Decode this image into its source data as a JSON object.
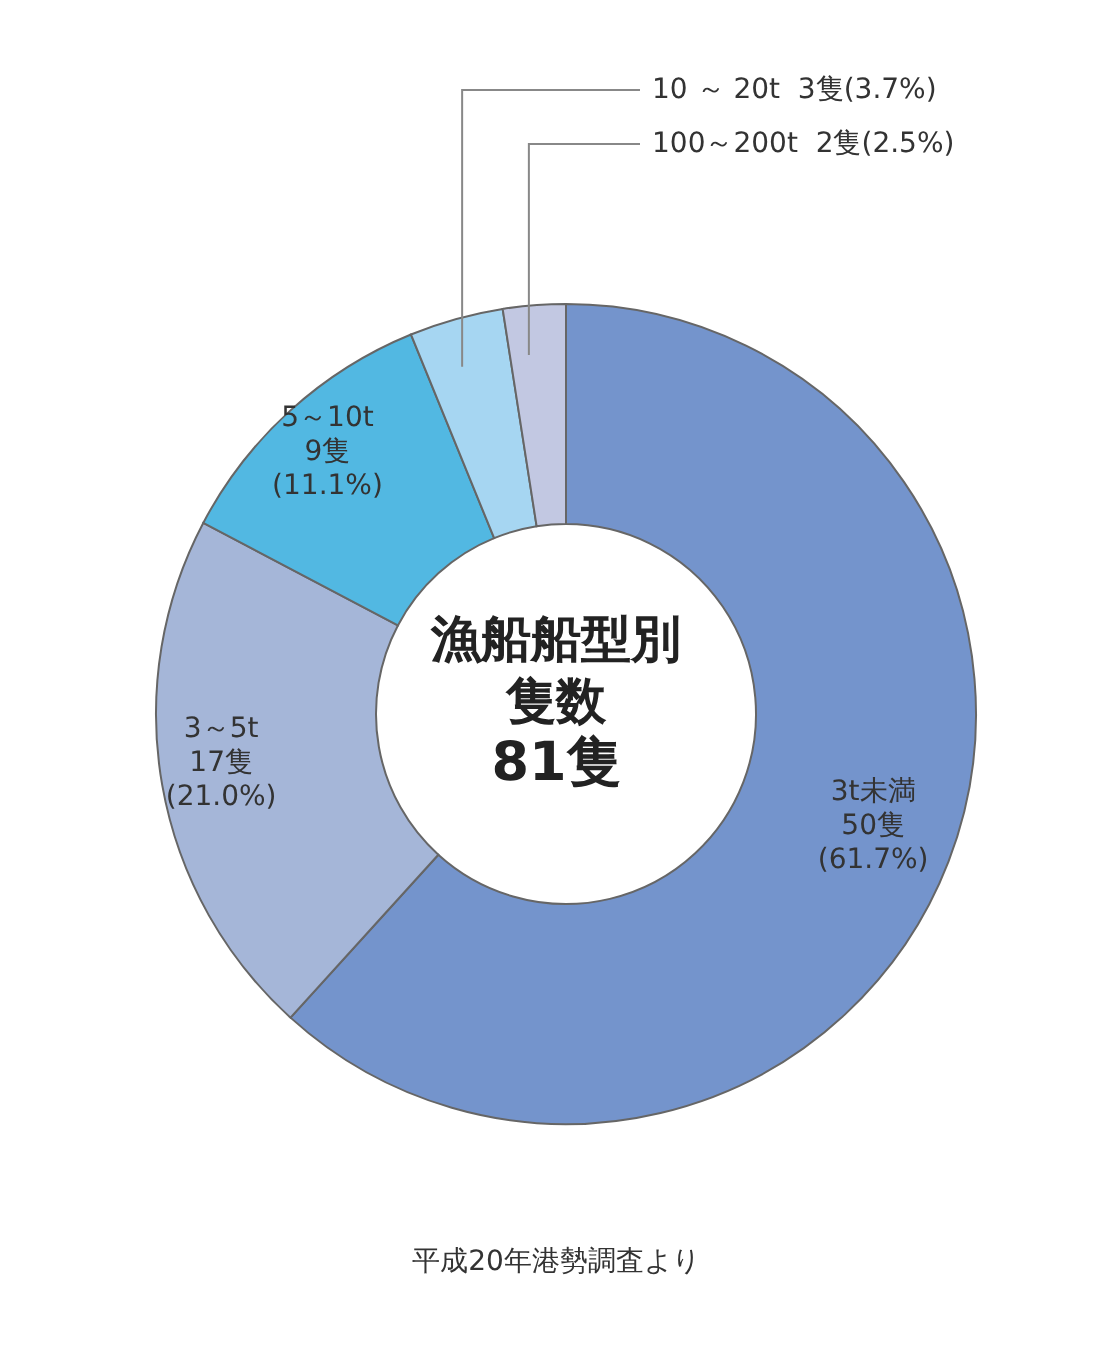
{
  "chart_data": {
    "type": "donut",
    "title": "漁船船型別隻数",
    "subtitle": "81隻",
    "categories": [
      "3t未満",
      "3～5t",
      "5～10t",
      "10 ～ 20t",
      "100～200t"
    ],
    "values": [
      50,
      17,
      9,
      3,
      2
    ],
    "value_labels": [
      "50隻\n(61.7%)",
      "17隻\n(21.0%)",
      "9隻\n(11.1%)",
      "3隻(3.7%)",
      "2隻(2.5%)"
    ],
    "colors": [
      "#7494cc",
      "#a5b6d8",
      "#52b8e2",
      "#a6d6f2",
      "#c2c8e2"
    ],
    "annotations": [
      "平成20年港勢調査より"
    ]
  }
}
